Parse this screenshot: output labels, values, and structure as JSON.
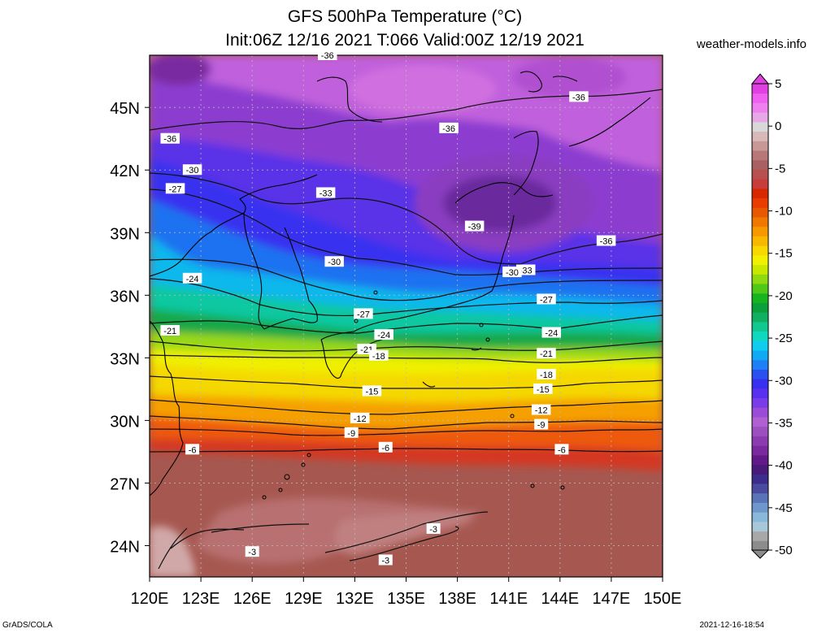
{
  "header": {
    "title_line1": "GFS 500hPa Temperature (°C)",
    "title_line2": "Init:06Z 12/16 2021 T:066 Valid:00Z 12/19 2021",
    "site": "weather-models.info"
  },
  "footer": {
    "left": "GrADS/COLA",
    "right": "2021-12-16-18:54"
  },
  "map": {
    "lon_labels": [
      "120E",
      "123E",
      "126E",
      "129E",
      "132E",
      "135E",
      "138E",
      "141E",
      "144E",
      "147E",
      "150E"
    ],
    "lat_labels": [
      "45N",
      "42N",
      "39N",
      "36N",
      "33N",
      "30N",
      "27N",
      "24N"
    ],
    "lon_range": [
      120,
      150
    ],
    "lat_range": [
      22.5,
      47.5
    ],
    "grid": true,
    "contour_labels": [
      {
        "text": "-36",
        "lon": 121.2,
        "lat": 43.5
      },
      {
        "text": "-36",
        "lon": 137.5,
        "lat": 44.0
      },
      {
        "text": "-36",
        "lon": 145.1,
        "lat": 45.5
      },
      {
        "text": "-36",
        "lon": 146.7,
        "lat": 38.6
      },
      {
        "text": "-39",
        "lon": 139.0,
        "lat": 39.3
      },
      {
        "text": "-33",
        "lon": 130.3,
        "lat": 40.9
      },
      {
        "text": "-33",
        "lon": 142.0,
        "lat": 37.2
      },
      {
        "text": "-30",
        "lon": 122.5,
        "lat": 42.0
      },
      {
        "text": "-30",
        "lon": 130.8,
        "lat": 37.6
      },
      {
        "text": "-30",
        "lon": 141.2,
        "lat": 37.1
      },
      {
        "text": "-27",
        "lon": 121.5,
        "lat": 41.1
      },
      {
        "text": "-27",
        "lon": 132.5,
        "lat": 35.1
      },
      {
        "text": "-27",
        "lon": 143.2,
        "lat": 35.8
      },
      {
        "text": "-24",
        "lon": 122.5,
        "lat": 36.8
      },
      {
        "text": "-24",
        "lon": 133.7,
        "lat": 34.1
      },
      {
        "text": "-24",
        "lon": 143.5,
        "lat": 34.2
      },
      {
        "text": "-21",
        "lon": 121.2,
        "lat": 34.3
      },
      {
        "text": "-21",
        "lon": 132.7,
        "lat": 33.4
      },
      {
        "text": "-21",
        "lon": 143.2,
        "lat": 33.2
      },
      {
        "text": "-18",
        "lon": 133.4,
        "lat": 33.1
      },
      {
        "text": "-18",
        "lon": 143.2,
        "lat": 32.2
      },
      {
        "text": "-15",
        "lon": 133.0,
        "lat": 31.4
      },
      {
        "text": "-15",
        "lon": 143.0,
        "lat": 31.5
      },
      {
        "text": "-12",
        "lon": 132.3,
        "lat": 30.1
      },
      {
        "text": "-12",
        "lon": 142.9,
        "lat": 30.5
      },
      {
        "text": "-9",
        "lon": 131.8,
        "lat": 29.4
      },
      {
        "text": "-9",
        "lon": 142.9,
        "lat": 29.8
      },
      {
        "text": "-6",
        "lon": 122.5,
        "lat": 28.6
      },
      {
        "text": "-6",
        "lon": 133.8,
        "lat": 28.7
      },
      {
        "text": "-6",
        "lon": 144.1,
        "lat": 28.6
      },
      {
        "text": "-3",
        "lon": 126.0,
        "lat": 23.7
      },
      {
        "text": "-3",
        "lon": 136.6,
        "lat": 24.8
      },
      {
        "text": "-3",
        "lon": 133.8,
        "lat": 23.3
      },
      {
        "text": "-36",
        "lon": 130.4,
        "lat": 47.5
      }
    ]
  },
  "colorbar": {
    "labels": [
      "5",
      "0",
      "-5",
      "-10",
      "-15",
      "-20",
      "-25",
      "-30",
      "-35",
      "-40",
      "-45",
      "-50"
    ],
    "range": [
      -50,
      5
    ],
    "colors": [
      "#8c8c8c",
      "#a8a8a8",
      "#a6c8d8",
      "#8ab8d8",
      "#6e98cc",
      "#5a74b8",
      "#4a4aa0",
      "#3c2c8c",
      "#4a1a7a",
      "#621a8a",
      "#7a2a9e",
      "#8c3cb0",
      "#9c50c0",
      "#b060d0",
      "#9a4cd8",
      "#7a3ce8",
      "#5a30f0",
      "#3830f0",
      "#2a50f0",
      "#1e80f4",
      "#10aaf4",
      "#10ccee",
      "#10d8c0",
      "#10c890",
      "#10b060",
      "#0ca03c",
      "#18b420",
      "#50c818",
      "#90d810",
      "#c8e800",
      "#f0f000",
      "#f8d800",
      "#f8b800",
      "#f89800",
      "#f07800",
      "#e85800",
      "#e83c00",
      "#d82800",
      "#c83c3c",
      "#b85050",
      "#a86060",
      "#b87878",
      "#c89898",
      "#d8b8b8",
      "#d8d8d8",
      "#e8a8e8",
      "#f080f0",
      "#f060f0",
      "#e040e0"
    ]
  }
}
